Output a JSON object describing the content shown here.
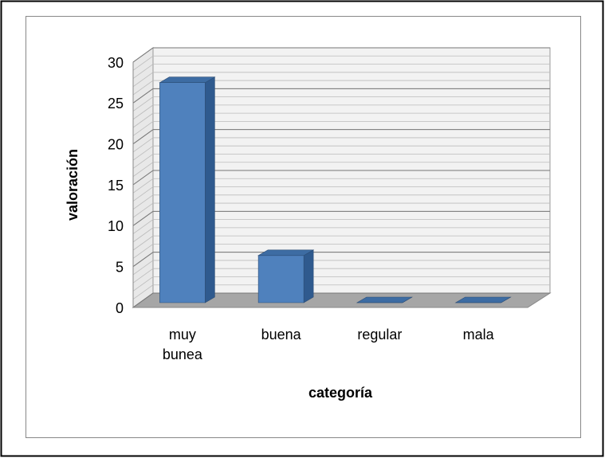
{
  "chart_data": {
    "type": "bar",
    "categories": [
      "muy bunea",
      "buena",
      "regular",
      "mala"
    ],
    "values": [
      28,
      6,
      0,
      0
    ],
    "color": "#4f81bd",
    "xlabel": "categoría",
    "ylabel": "valoración",
    "ylim": [
      0,
      30
    ],
    "yticks": [
      0,
      5,
      10,
      15,
      20,
      25,
      30
    ],
    "grid": true
  }
}
